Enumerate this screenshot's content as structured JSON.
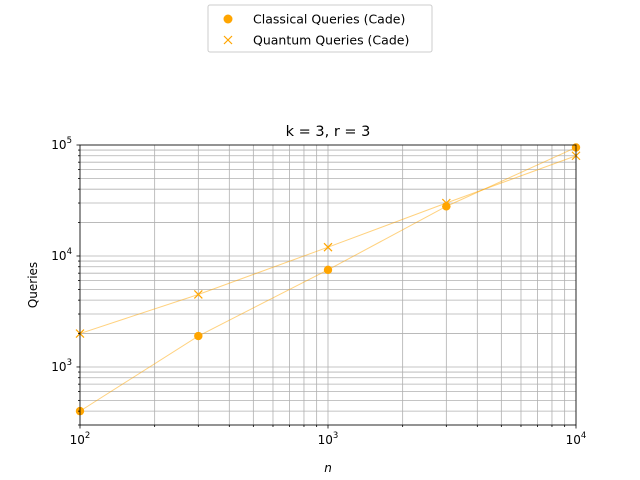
{
  "chart_data": {
    "type": "line",
    "title": "k = 3, r = 3",
    "xlabel": "n",
    "ylabel": "Queries",
    "xscale": "log",
    "yscale": "log",
    "xlim": [
      100,
      10000
    ],
    "ylim": [
      300,
      100000
    ],
    "x_ticks": [
      {
        "value": 100,
        "base": "10",
        "exp": "2"
      },
      {
        "value": 1000,
        "base": "10",
        "exp": "3"
      },
      {
        "value": 10000,
        "base": "10",
        "exp": "4"
      }
    ],
    "y_ticks": [
      {
        "value": 1000,
        "base": "10",
        "exp": "3"
      },
      {
        "value": 10000,
        "base": "10",
        "exp": "4"
      },
      {
        "value": 100000,
        "base": "10",
        "exp": "5"
      }
    ],
    "grid": "major-and-minor",
    "legend_position": "top-center",
    "series": [
      {
        "name": "Classical Queries (Cade)",
        "marker": "circle",
        "color": "#ffa500",
        "x": [
          100,
          300,
          1000,
          3000,
          10000
        ],
        "y": [
          400,
          1900,
          7500,
          28000,
          95000
        ]
      },
      {
        "name": "Quantum Queries (Cade)",
        "marker": "x",
        "color": "#ffa500",
        "x": [
          100,
          300,
          1000,
          3000,
          10000
        ],
        "y": [
          2000,
          4500,
          12000,
          30000,
          80000
        ]
      }
    ]
  }
}
